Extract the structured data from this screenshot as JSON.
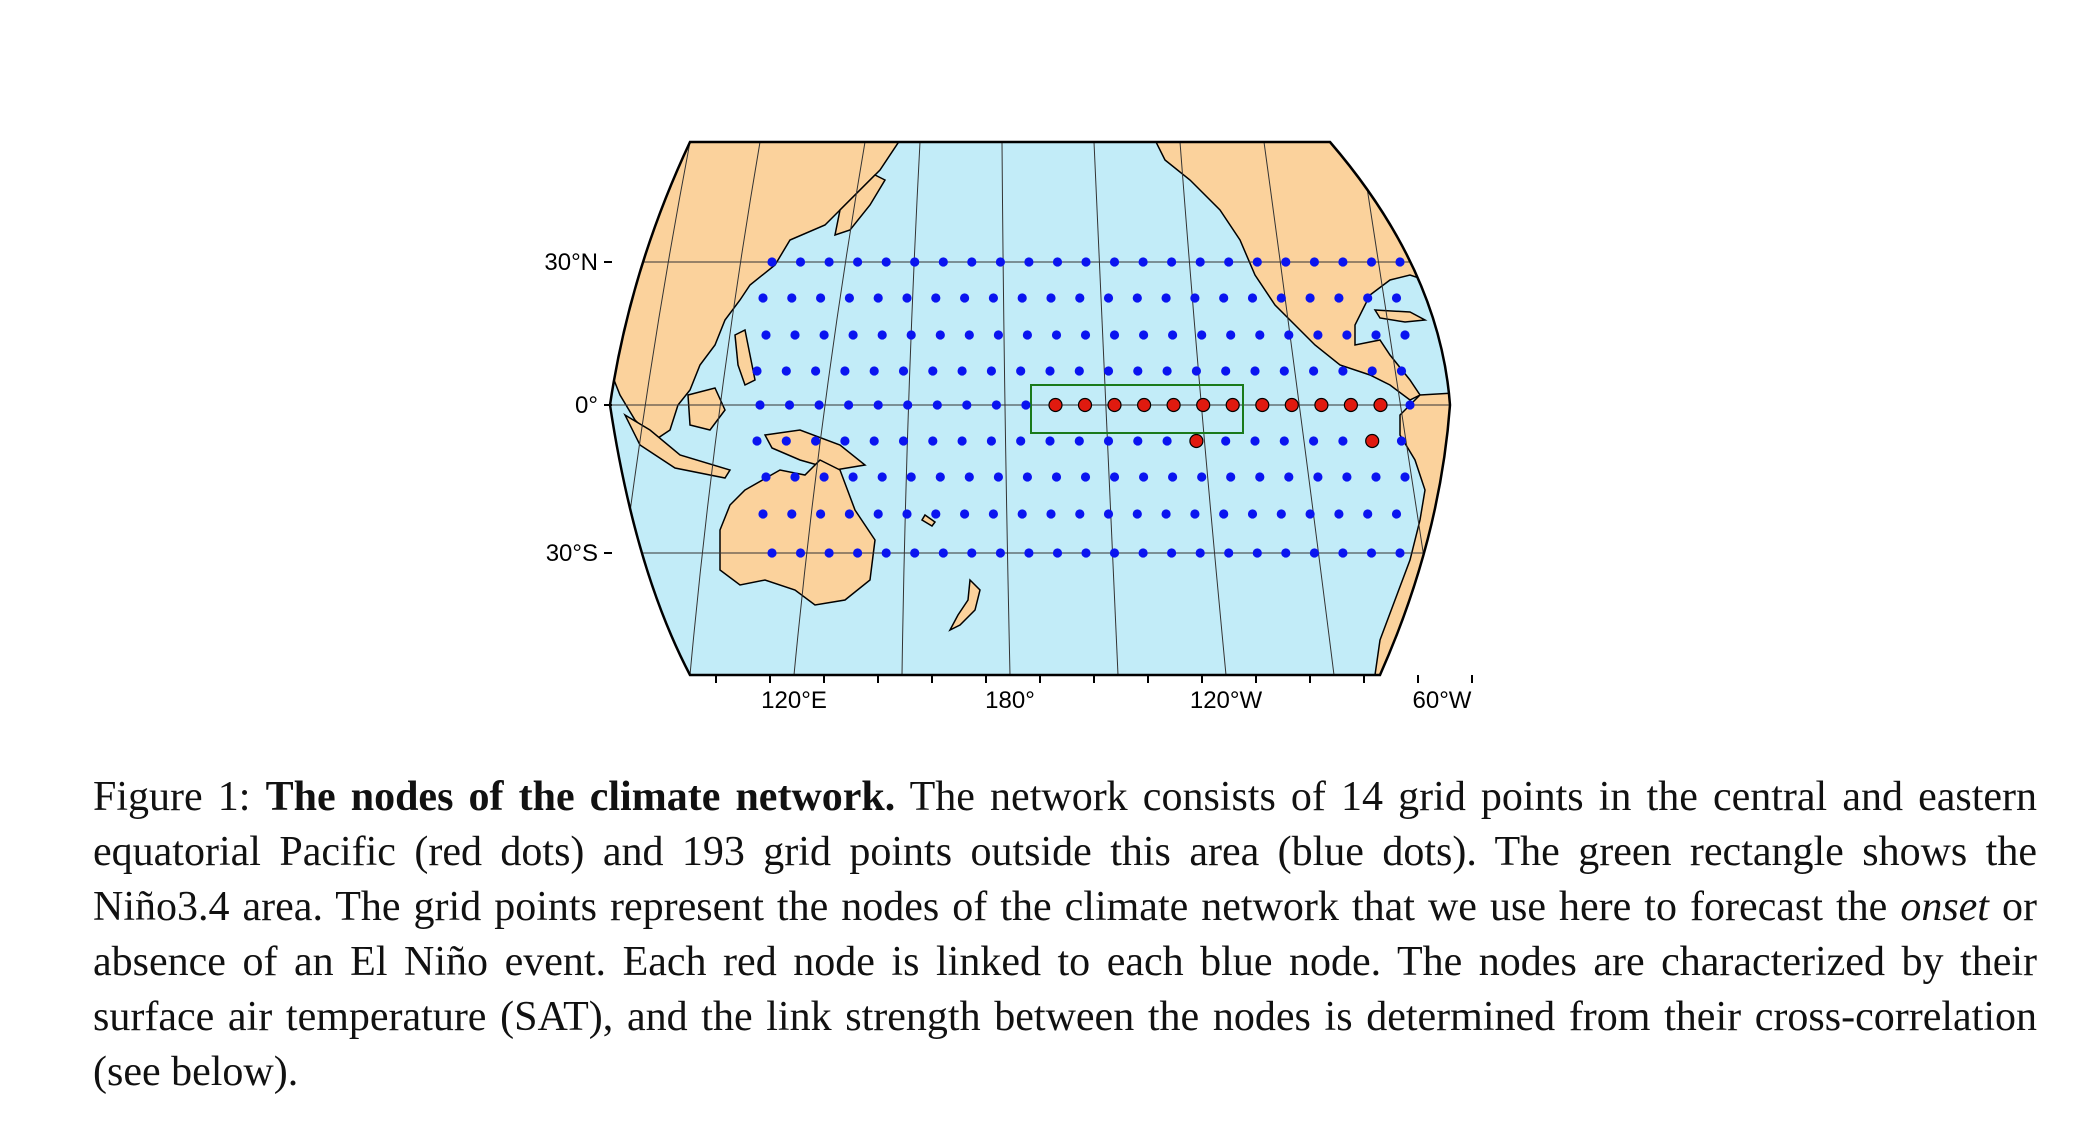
{
  "map": {
    "latitude_labels": [
      "30°N",
      "0°",
      "30°S"
    ],
    "longitude_labels": [
      "120°E",
      "180°",
      "120°W",
      "60°W"
    ],
    "colors": {
      "ocean": "#c2ecf8",
      "land": "#fbd29c",
      "coast": "#000000",
      "graticule": "#333333",
      "red_node": "#e01a0f",
      "blue_node": "#0a14f0",
      "nino_box": "#1a7a1a"
    }
  },
  "nodes": {
    "red_count": 14,
    "blue_count": 193,
    "red_legend": "red dots",
    "blue_legend": "blue dots",
    "region_name": "Niño3.4"
  },
  "caption": {
    "label": "Figure 1:",
    "title": "The nodes of the climate network.",
    "text_1": " The network consists of 14 grid points in the central and eastern equatorial Pacific (red dots) and 193 grid points outside this area (blue dots). The green rectangle shows the Niño3.4 area. The grid points represent the nodes of the climate network that we use here to forecast the ",
    "emph": "onset",
    "text_2": " or absence of an El Niño event. Each red node is linked to each blue node. The nodes are characterized by their surface air temperature (SAT), and the link strength between the nodes is determined from their cross-correlation (see below)."
  }
}
